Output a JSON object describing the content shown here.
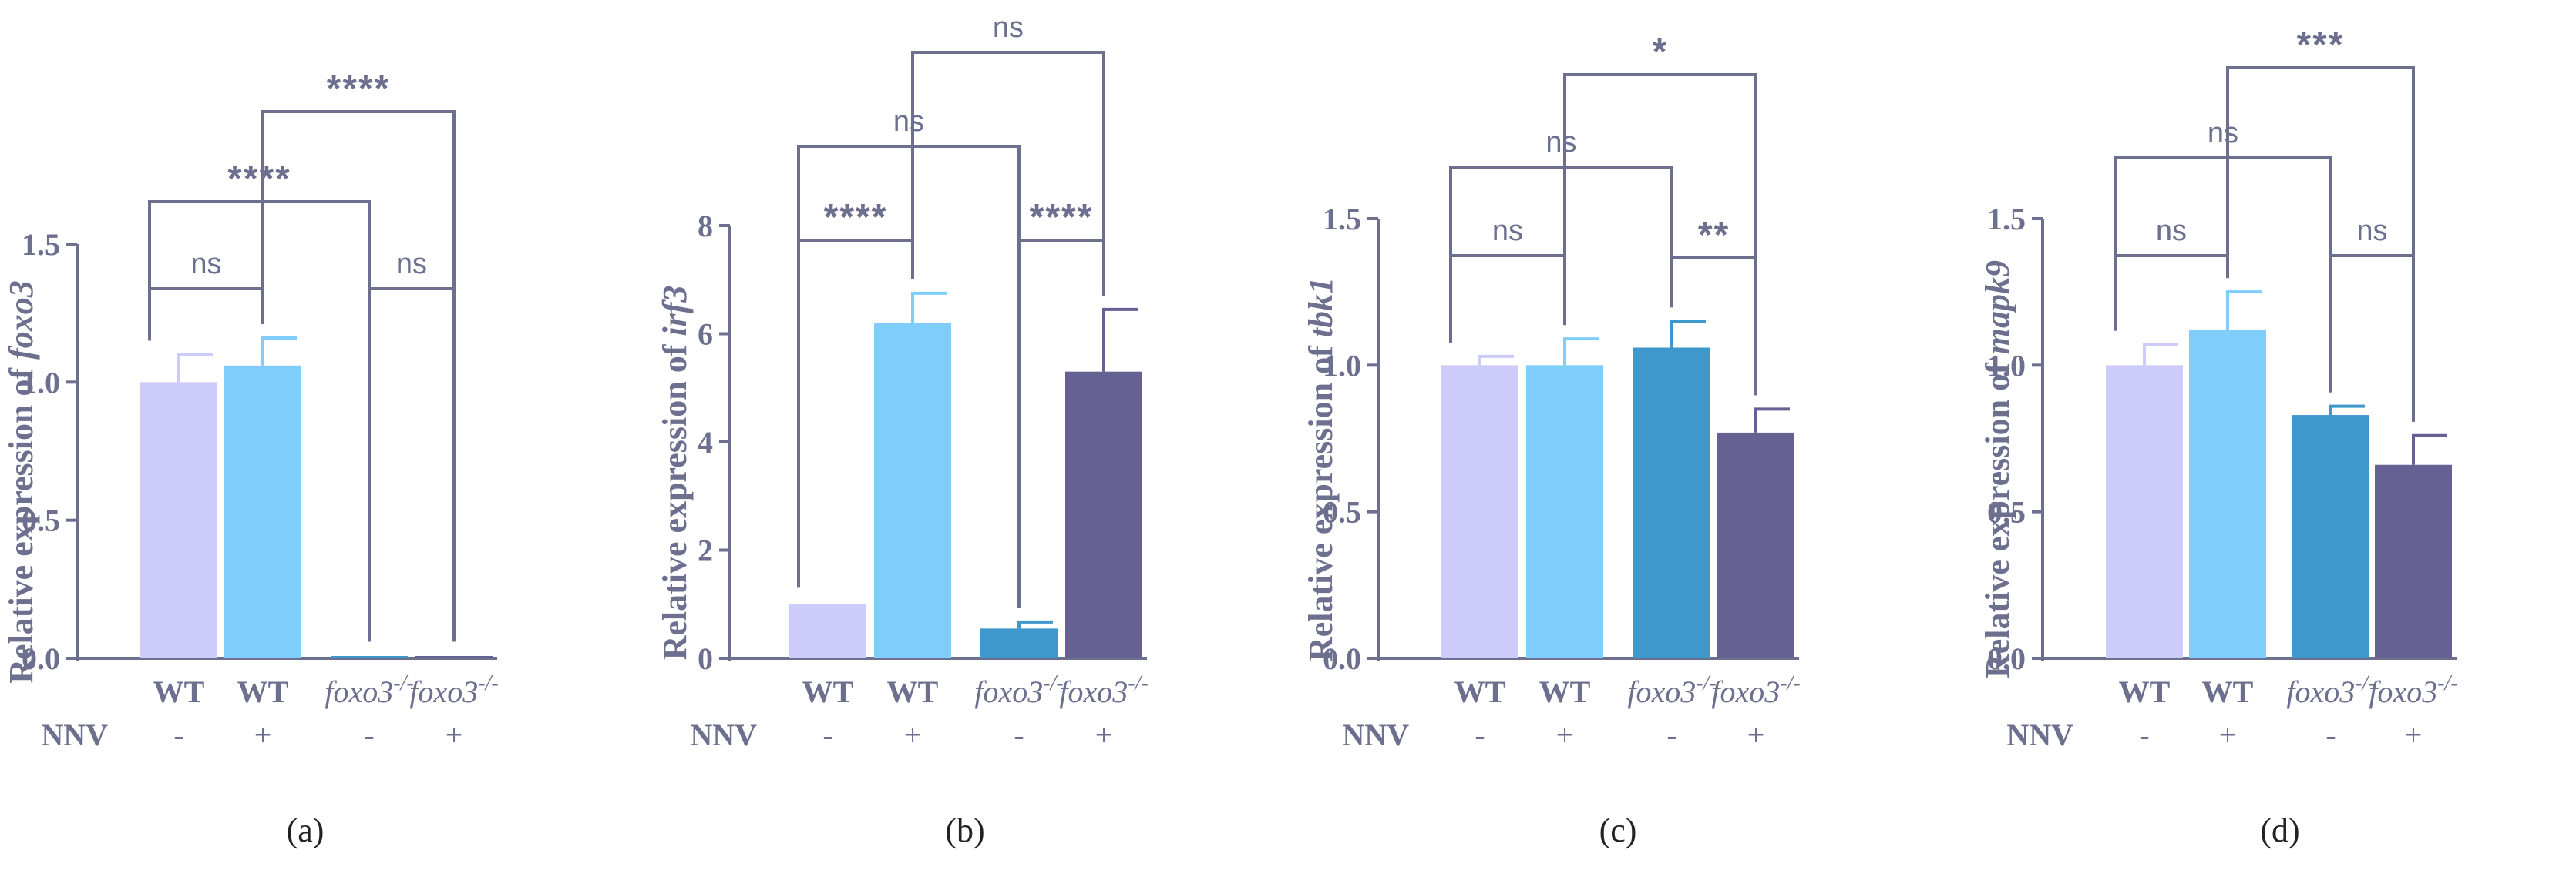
{
  "treatment_label": "NNV",
  "chart_data": [
    {
      "type": "bar",
      "caption": "(a)",
      "ylabel_prefix": "Relative expression of ",
      "gene": "foxo3",
      "gene_italic": true,
      "categories": [
        "WT",
        "WT",
        "foxo3-/-",
        "foxo3-/-"
      ],
      "nnv": [
        "-",
        "+",
        "-",
        "+"
      ],
      "values": [
        1.0,
        1.06,
        0.005,
        0.005
      ],
      "errors": [
        0.1,
        0.1,
        0.005,
        0.005
      ],
      "ylim": [
        0,
        1.5
      ],
      "yticks": [
        "0.0",
        "0.5",
        "1.0",
        "1.5"
      ],
      "comparisons": [
        {
          "a": 0,
          "b": 1,
          "label": "ns"
        },
        {
          "a": 2,
          "b": 3,
          "label": "ns"
        },
        {
          "a": 0,
          "b": 2,
          "label": "****"
        },
        {
          "a": 1,
          "b": 3,
          "label": "****"
        }
      ]
    },
    {
      "type": "bar",
      "caption": "(b)",
      "ylabel_prefix": "Relative expression of ",
      "gene": "irf3",
      "gene_italic": true,
      "categories": [
        "WT",
        "WT",
        "foxo3-/-",
        "foxo3-/-"
      ],
      "nnv": [
        "-",
        "+",
        "-",
        "+"
      ],
      "values": [
        1.0,
        6.2,
        0.55,
        5.3
      ],
      "errors": [
        0.05,
        0.55,
        0.12,
        1.15
      ],
      "ylim": [
        0,
        8
      ],
      "yticks": [
        "0",
        "2",
        "4",
        "6",
        "8"
      ],
      "comparisons": [
        {
          "a": 0,
          "b": 1,
          "label": "****"
        },
        {
          "a": 2,
          "b": 3,
          "label": "****"
        },
        {
          "a": 0,
          "b": 2,
          "label": "ns"
        },
        {
          "a": 1,
          "b": 3,
          "label": "ns"
        }
      ]
    },
    {
      "type": "bar",
      "caption": "(c)",
      "ylabel_prefix": "Relative expression of ",
      "gene": "tbk1",
      "gene_italic": true,
      "categories": [
        "WT",
        "WT",
        "foxo3-/-",
        "foxo3-/-"
      ],
      "nnv": [
        "-",
        "+",
        "-",
        "+"
      ],
      "values": [
        1.0,
        1.0,
        1.06,
        0.77
      ],
      "errors": [
        0.03,
        0.09,
        0.09,
        0.08
      ],
      "ylim": [
        0,
        1.5
      ],
      "yticks": [
        "0.0",
        "0.5",
        "1.0",
        "1.5"
      ],
      "comparisons": [
        {
          "a": 0,
          "b": 1,
          "label": "ns"
        },
        {
          "a": 2,
          "b": 3,
          "label": "**"
        },
        {
          "a": 0,
          "b": 2,
          "label": "ns"
        },
        {
          "a": 1,
          "b": 3,
          "label": "*"
        }
      ]
    },
    {
      "type": "bar",
      "caption": "(d)",
      "ylabel_prefix": "Relative expression of ",
      "gene": "mapk9",
      "gene_italic": true,
      "categories": [
        "WT",
        "WT",
        "foxo3-/-",
        "foxo3-/-"
      ],
      "nnv": [
        "-",
        "+",
        "-",
        "+"
      ],
      "values": [
        1.0,
        1.12,
        0.83,
        0.66
      ],
      "errors": [
        0.07,
        0.13,
        0.03,
        0.1
      ],
      "ylim": [
        0,
        1.5
      ],
      "yticks": [
        "0.0",
        "0.5",
        "1.0",
        "1.5"
      ],
      "comparisons": [
        {
          "a": 0,
          "b": 1,
          "label": "ns"
        },
        {
          "a": 2,
          "b": 3,
          "label": "ns"
        },
        {
          "a": 0,
          "b": 2,
          "label": "ns"
        },
        {
          "a": 1,
          "b": 3,
          "label": "***"
        }
      ]
    }
  ],
  "colors": [
    "#cccbfa",
    "#7fcdfa",
    "#3f98cc",
    "#656293"
  ],
  "axis_color": "#6d6f8f"
}
